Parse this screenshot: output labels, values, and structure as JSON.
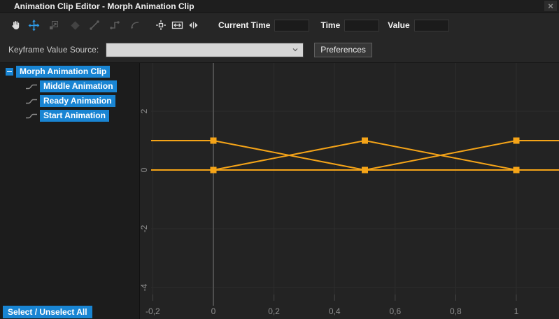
{
  "window": {
    "title": "Animation Clip Editor - Morph Animation Clip",
    "close_label": "×"
  },
  "colors": {
    "accent_blue": "#1985d3",
    "active_tool_blue": "#2f9be8",
    "curve_orange": "#f5a418",
    "panel_background": "#232323",
    "tree_background": "#1c1c1c",
    "grid_line": "#2d2d2d"
  },
  "toolbar": {
    "tools": [
      {
        "name": "hand-tool",
        "state": "normal"
      },
      {
        "name": "move-tool",
        "state": "active"
      },
      {
        "name": "scale-tool",
        "state": "disabled"
      },
      {
        "name": "add-keyframe",
        "state": "disabled"
      },
      {
        "name": "linear-tangent",
        "state": "disabled"
      },
      {
        "name": "step-tangent",
        "state": "disabled"
      },
      {
        "name": "spline-tangent",
        "state": "disabled"
      },
      {
        "name": "focus-keyframe",
        "state": "normal"
      },
      {
        "name": "fit-width",
        "state": "normal"
      },
      {
        "name": "split-view",
        "state": "normal"
      }
    ],
    "fields": [
      {
        "label": "Current Time",
        "value": ""
      },
      {
        "label": "Time",
        "value": ""
      },
      {
        "label": "Value",
        "value": ""
      }
    ]
  },
  "sourcebar": {
    "label": "Keyframe Value Source:",
    "dropdown_value": "",
    "preferences_label": "Preferences"
  },
  "tree": {
    "root": {
      "label": "Morph Animation Clip",
      "expanded": true
    },
    "items": [
      {
        "label": "Middle Animation"
      },
      {
        "label": "Ready Animation"
      },
      {
        "label": "Start Animation"
      }
    ],
    "select_all_label": "Select / Unselect All"
  },
  "chart_data": {
    "type": "line",
    "title": "",
    "xlabel": "",
    "ylabel": "",
    "grid": true,
    "legend": false,
    "xlim": [
      -0.21,
      1.14
    ],
    "ylim": [
      -5.1,
      3.6
    ],
    "current_time": 0,
    "x_ticks": [
      {
        "v": -0.2,
        "label": "-0,2"
      },
      {
        "v": 0,
        "label": "0"
      },
      {
        "v": 0.2,
        "label": "0,2"
      },
      {
        "v": 0.4,
        "label": "0,4"
      },
      {
        "v": 0.6,
        "label": "0,6"
      },
      {
        "v": 0.8,
        "label": "0,8"
      },
      {
        "v": 1,
        "label": "1"
      }
    ],
    "y_ticks": [
      {
        "v": 2,
        "label": "2"
      },
      {
        "v": 0,
        "label": "0"
      },
      {
        "v": -2,
        "label": "-2"
      },
      {
        "v": -4,
        "label": "-4"
      }
    ],
    "series": [
      {
        "name": "Middle Animation",
        "points": [
          [
            0,
            0
          ],
          [
            0.5,
            1
          ],
          [
            1,
            0
          ]
        ]
      },
      {
        "name": "Ready Animation",
        "points": [
          [
            0,
            0
          ],
          [
            0.5,
            0
          ],
          [
            1,
            1
          ]
        ]
      },
      {
        "name": "Start Animation",
        "points": [
          [
            0,
            1
          ],
          [
            0.5,
            0
          ],
          [
            1,
            0
          ]
        ]
      }
    ]
  }
}
